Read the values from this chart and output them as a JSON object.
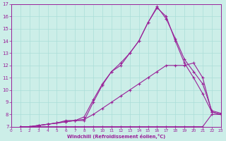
{
  "xlabel": "Windchill (Refroidissement éolien,°C)",
  "bg_color": "#cceee8",
  "grid_color": "#aaddd8",
  "line_color": "#992299",
  "xlim": [
    0,
    23
  ],
  "ylim": [
    7,
    17
  ],
  "yticks": [
    7,
    8,
    9,
    10,
    11,
    12,
    13,
    14,
    15,
    16,
    17
  ],
  "xticks": [
    0,
    1,
    2,
    3,
    4,
    5,
    6,
    7,
    8,
    9,
    10,
    11,
    12,
    13,
    14,
    15,
    16,
    17,
    18,
    19,
    20,
    21,
    22,
    23
  ],
  "curves": [
    {
      "x": [
        1,
        2,
        3,
        4,
        5,
        6,
        7,
        8,
        9,
        10,
        11,
        12,
        13,
        14,
        15,
        16,
        17,
        18,
        19,
        20,
        21,
        22,
        23
      ],
      "y": [
        7,
        7,
        7,
        7,
        7,
        7,
        7,
        7,
        7,
        7,
        7,
        7,
        7,
        7,
        7,
        7,
        7,
        7,
        7,
        7,
        7,
        8,
        8
      ]
    },
    {
      "x": [
        1,
        2,
        3,
        4,
        5,
        6,
        7,
        8,
        9,
        10,
        11,
        12,
        13,
        14,
        15,
        16,
        17,
        18,
        19,
        20,
        21,
        22,
        23
      ],
      "y": [
        7,
        7,
        7.1,
        7.2,
        7.3,
        7.4,
        7.5,
        7.6,
        8.0,
        8.5,
        9.0,
        9.5,
        10.0,
        10.5,
        11.0,
        11.5,
        12.0,
        12.0,
        12.0,
        12.2,
        11.0,
        8.2,
        8.0
      ]
    },
    {
      "x": [
        1,
        2,
        3,
        4,
        5,
        6,
        7,
        8,
        9,
        10,
        11,
        12,
        13,
        14,
        15,
        16,
        17,
        18,
        19,
        20,
        21,
        22,
        23
      ],
      "y": [
        7,
        7,
        7.1,
        7.2,
        7.3,
        7.5,
        7.5,
        7.8,
        9.2,
        10.5,
        11.5,
        12.0,
        13.0,
        14.0,
        15.5,
        16.7,
        16.0,
        14.0,
        12.2,
        11.0,
        9.7,
        8.2,
        8.0
      ]
    },
    {
      "x": [
        1,
        2,
        3,
        4,
        5,
        6,
        7,
        8,
        9,
        10,
        11,
        12,
        13,
        14,
        15,
        16,
        17,
        18,
        19,
        20,
        21,
        22,
        23
      ],
      "y": [
        7,
        7,
        7.1,
        7.2,
        7.3,
        7.4,
        7.5,
        7.5,
        9.0,
        10.4,
        11.5,
        12.2,
        13.0,
        14.0,
        15.5,
        16.8,
        15.8,
        14.2,
        12.5,
        11.5,
        10.5,
        8.3,
        8.1
      ]
    }
  ]
}
